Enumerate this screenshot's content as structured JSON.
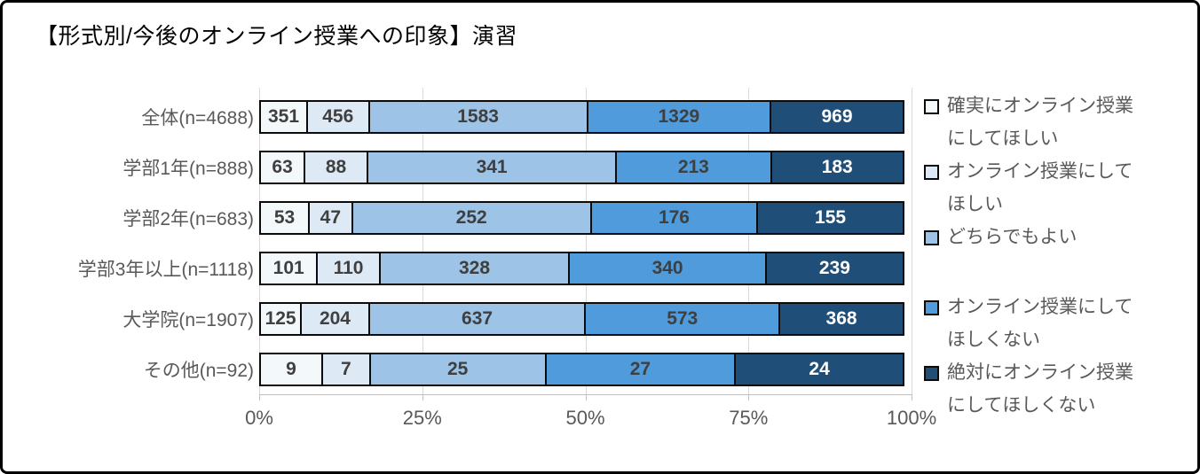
{
  "title": "【形式別/今後のオンライン授業への印象】演習",
  "chart_data": {
    "type": "bar",
    "variant": "stacked-100-horizontal",
    "title": "【形式別/今後のオンライン授業への印象】演習",
    "categories": [
      "全体(n=4688)",
      "学部1年(n=888)",
      "学部2年(n=683)",
      "学部3年以上(n=1118)",
      "大学院(n=1907)",
      "その他(n=92)"
    ],
    "series": [
      {
        "name": "確実にオンライン授業にしてほしい",
        "color": "#F3F8FB",
        "label_color": "#3F3F3F",
        "values": [
          351,
          63,
          53,
          101,
          125,
          9
        ]
      },
      {
        "name": "オンライン授業にしてほしい",
        "color": "#DDEAF6",
        "label_color": "#3F3F3F",
        "values": [
          456,
          88,
          47,
          110,
          204,
          7
        ]
      },
      {
        "name": "どちらでもよい",
        "color": "#9DC3E6",
        "label_color": "#3F3F3F",
        "values": [
          1583,
          341,
          252,
          328,
          637,
          25
        ]
      },
      {
        "name": "オンライン授業にしてほしくない",
        "color": "#4F9BDB",
        "label_color": "#3F3F3F",
        "values": [
          1329,
          213,
          176,
          340,
          573,
          27
        ]
      },
      {
        "name": "絶対にオンライン授業にしてほしくない",
        "color": "#1F4E79",
        "label_color": "#FFFFFF",
        "values": [
          969,
          183,
          155,
          239,
          368,
          24
        ]
      }
    ],
    "x_ticks": [
      {
        "label": "0%",
        "pos": 0
      },
      {
        "label": "25%",
        "pos": 25
      },
      {
        "label": "50%",
        "pos": 50
      },
      {
        "label": "75%",
        "pos": 75
      },
      {
        "label": "100%",
        "pos": 100
      }
    ],
    "xlim": [
      0,
      100
    ],
    "gridlines": true,
    "legend_position": "right",
    "legend_gap_before_index": 3
  },
  "colors": {
    "grid": "#D9D9D9",
    "axis": "#BFBFBF",
    "text_muted": "#595959",
    "bar_border": "#0b0b0b"
  }
}
